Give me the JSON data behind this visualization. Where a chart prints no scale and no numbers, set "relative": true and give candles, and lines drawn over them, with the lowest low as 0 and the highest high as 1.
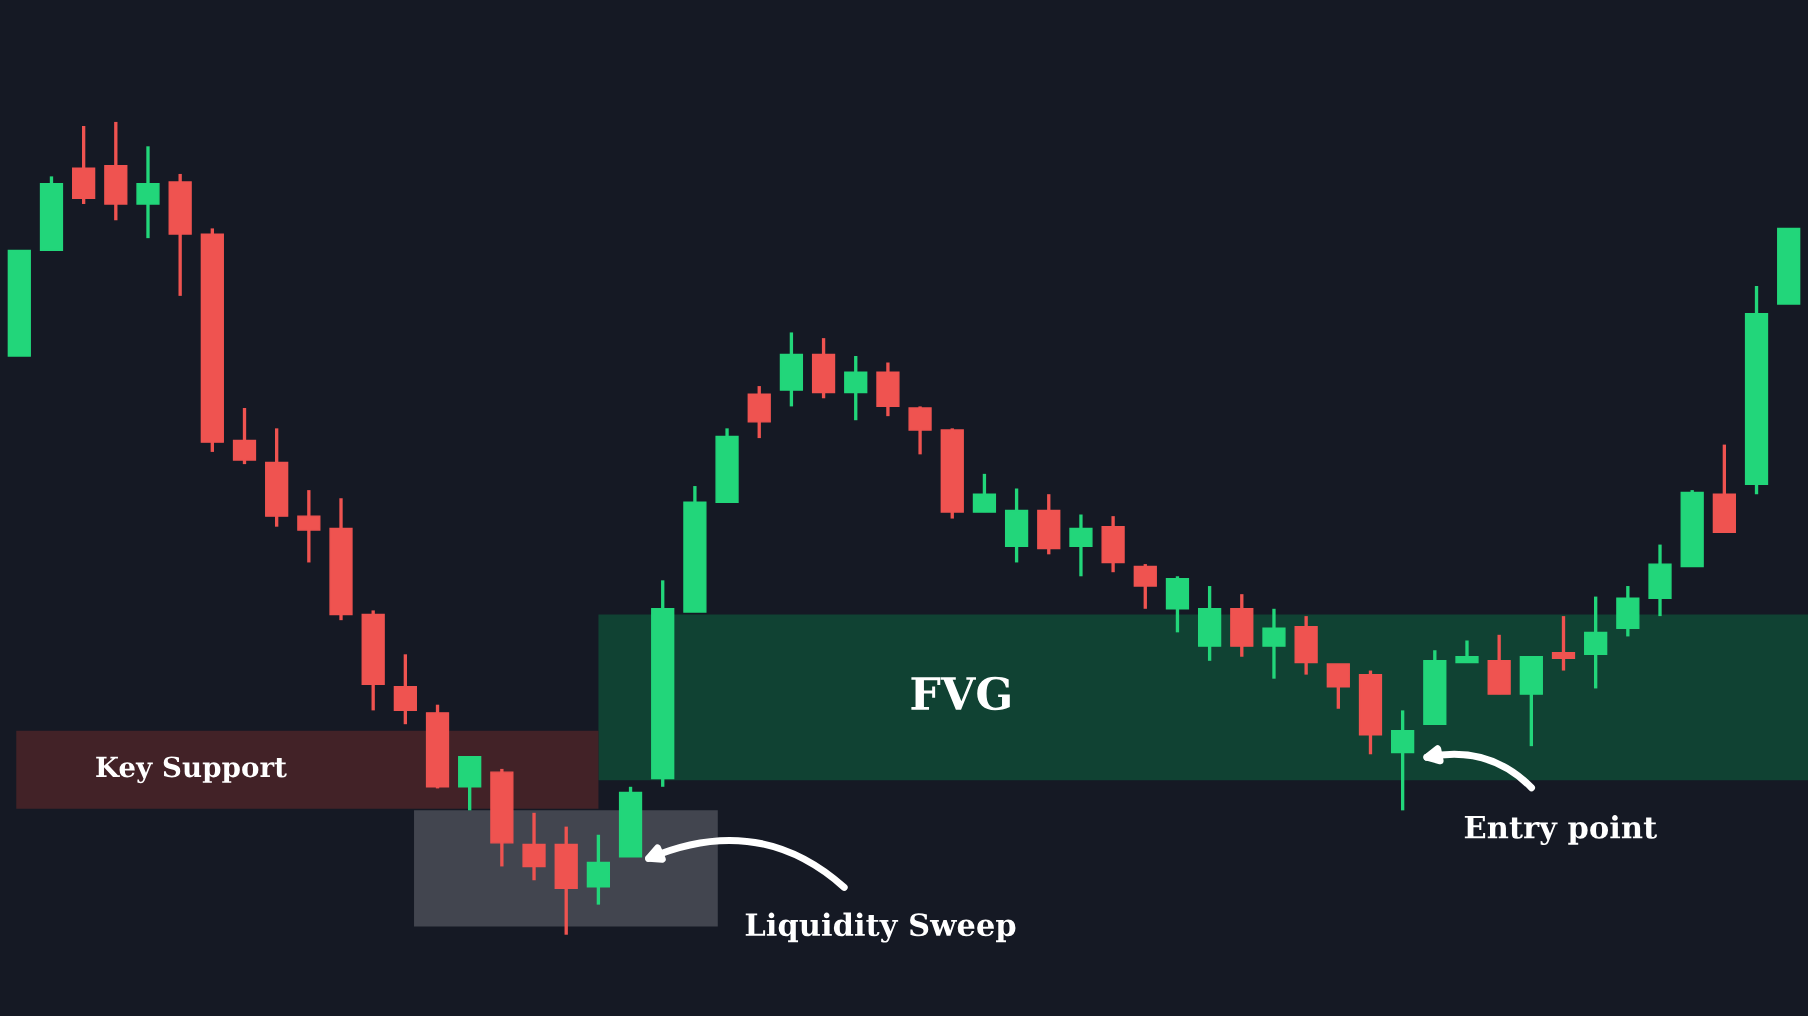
{
  "chart_data": {
    "type": "candlestick",
    "relative": true,
    "categories": [
      null,
      null,
      null,
      null,
      null,
      null,
      null,
      null,
      null,
      null,
      null,
      null,
      null,
      null,
      null,
      null,
      null,
      null,
      null,
      null,
      null,
      null,
      null,
      null,
      null,
      null,
      null,
      null,
      null,
      null,
      null,
      null,
      null,
      null,
      null,
      null,
      null,
      null,
      null,
      null,
      null,
      null,
      null,
      null,
      null,
      null,
      null,
      null,
      null,
      null,
      null,
      null,
      null,
      null,
      null,
      null
    ],
    "ohlc": [
      [
        0.712,
        0.842,
        0.712,
        0.842
      ],
      [
        0.842,
        0.933,
        0.842,
        0.924
      ],
      [
        0.943,
        0.995,
        0.899,
        0.906
      ],
      [
        0.946,
        1.0,
        0.879,
        0.899
      ],
      [
        0.899,
        0.97,
        0.857,
        0.924
      ],
      [
        0.926,
        0.936,
        0.786,
        0.862
      ],
      [
        0.862,
        0.869,
        0.594,
        0.606
      ],
      [
        0.608,
        0.648,
        0.579,
        0.584
      ],
      [
        0.581,
        0.623,
        0.502,
        0.515
      ],
      [
        0.515,
        0.547,
        0.458,
        0.498
      ],
      [
        0.5,
        0.537,
        0.387,
        0.394
      ],
      [
        0.394,
        0.399,
        0.276,
        0.308
      ],
      [
        0.305,
        0.345,
        0.259,
        0.276
      ],
      [
        0.273,
        0.283,
        0.18,
        0.182
      ],
      [
        0.182,
        0.219,
        0.153,
        0.219
      ],
      [
        0.2,
        0.204,
        0.084,
        0.113
      ],
      [
        0.111,
        0.15,
        0.067,
        0.084
      ],
      [
        0.111,
        0.133,
        0.0,
        0.057
      ],
      [
        0.059,
        0.123,
        0.037,
        0.089
      ],
      [
        0.096,
        0.182,
        0.096,
        0.175
      ],
      [
        0.192,
        0.436,
        0.182,
        0.401
      ],
      [
        0.397,
        0.552,
        0.397,
        0.532
      ],
      [
        0.532,
        0.623,
        0.532,
        0.613
      ],
      [
        0.665,
        0.675,
        0.611,
        0.631
      ],
      [
        0.67,
        0.741,
        0.65,
        0.714
      ],
      [
        0.714,
        0.734,
        0.66,
        0.667
      ],
      [
        0.667,
        0.712,
        0.633,
        0.692
      ],
      [
        0.692,
        0.704,
        0.638,
        0.65
      ],
      [
        0.648,
        0.65,
        0.591,
        0.621
      ],
      [
        0.621,
        0.623,
        0.512,
        0.52
      ],
      [
        0.52,
        0.567,
        0.52,
        0.542
      ],
      [
        0.478,
        0.549,
        0.458,
        0.522
      ],
      [
        0.522,
        0.542,
        0.468,
        0.475
      ],
      [
        0.478,
        0.517,
        0.441,
        0.5
      ],
      [
        0.502,
        0.515,
        0.446,
        0.458
      ],
      [
        0.453,
        0.456,
        0.401,
        0.429
      ],
      [
        0.401,
        0.441,
        0.372,
        0.438
      ],
      [
        0.355,
        0.429,
        0.337,
        0.401
      ],
      [
        0.401,
        0.419,
        0.342,
        0.355
      ],
      [
        0.355,
        0.401,
        0.315,
        0.377
      ],
      [
        0.379,
        0.392,
        0.32,
        0.335
      ],
      [
        0.333,
        0.333,
        0.278,
        0.305
      ],
      [
        0.32,
        0.325,
        0.222,
        0.246
      ],
      [
        0.224,
        0.276,
        0.153,
        0.251
      ],
      [
        0.259,
        0.35,
        0.259,
        0.337
      ],
      [
        0.335,
        0.362,
        0.335,
        0.342
      ],
      [
        0.337,
        0.369,
        0.296,
        0.296
      ],
      [
        0.296,
        0.342,
        0.232,
        0.342
      ],
      [
        0.347,
        0.392,
        0.325,
        0.34
      ],
      [
        0.345,
        0.416,
        0.303,
        0.372
      ],
      [
        0.377,
        0.429,
        0.367,
        0.414
      ],
      [
        0.414,
        0.48,
        0.392,
        0.456
      ],
      [
        0.453,
        0.547,
        0.453,
        0.544
      ],
      [
        0.542,
        0.603,
        0.495,
        0.495
      ],
      [
        0.554,
        0.798,
        0.542,
        0.764
      ],
      [
        0.776,
        0.869,
        0.776,
        0.869
      ]
    ],
    "colors": [
      "#22d67a",
      "#22d67a",
      "#ef5350",
      "#ef5350",
      "#22d67a",
      "#ef5350",
      "#ef5350",
      "#ef5350",
      "#ef5350",
      "#ef5350",
      "#ef5350",
      "#ef5350",
      "#ef5350",
      "#ef5350",
      "#22d67a",
      "#ef5350",
      "#ef5350",
      "#ef5350",
      "#22d67a",
      "#22d67a",
      "#22d67a",
      "#22d67a",
      "#22d67a",
      "#ef5350",
      "#22d67a",
      "#ef5350",
      "#22d67a",
      "#ef5350",
      "#ef5350",
      "#ef5350",
      "#22d67a",
      "#22d67a",
      "#ef5350",
      "#22d67a",
      "#ef5350",
      "#ef5350",
      "#22d67a",
      "#22d67a",
      "#ef5350",
      "#22d67a",
      "#ef5350",
      "#ef5350",
      "#ef5350",
      "#22d67a",
      "#22d67a",
      "#22d67a",
      "#ef5350",
      "#22d67a",
      "#ef5350",
      "#22d67a",
      "#22d67a",
      "#22d67a",
      "#22d67a",
      "#ef5350",
      "#22d67a",
      "#22d67a"
    ],
    "bands": [
      {
        "axis": "y",
        "from": 0.19,
        "to": 0.394,
        "label": "FVG",
        "color": "#0f4a36"
      },
      {
        "axis": "y",
        "from": 0.155,
        "to": 0.251,
        "label": "Key Support",
        "color": "#4a2428"
      },
      {
        "axis": "y",
        "from": 0.01,
        "to": 0.153,
        "color": "#4a4d57"
      }
    ],
    "annotations": [
      "Liquidity Sweep",
      "Entry point"
    ]
  }
}
